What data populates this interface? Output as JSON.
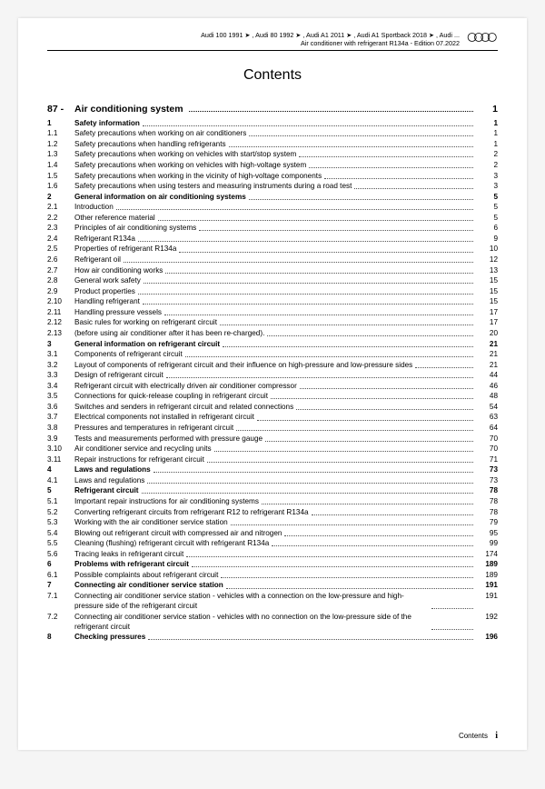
{
  "header": {
    "line1": "Audi 100 1991 ➤ , Audi 80 1992 ➤ , Audi A1 2011 ➤ , Audi A1 Sportback 2018 ➤ , Audi ...",
    "line2": "Air conditioner with refrigerant R134a - Edition 07.2022"
  },
  "title": "Contents",
  "chapter": {
    "num": "87 -",
    "title": "Air conditioning system",
    "page": "1"
  },
  "toc": [
    {
      "num": "1",
      "title": "Safety information",
      "page": "1",
      "bold": true
    },
    {
      "num": "1.1",
      "title": "Safety precautions when working on air conditioners",
      "page": "1"
    },
    {
      "num": "1.2",
      "title": "Safety precautions when handling refrigerants",
      "page": "1"
    },
    {
      "num": "1.3",
      "title": "Safety precautions when working on vehicles with start/stop system",
      "page": "2"
    },
    {
      "num": "1.4",
      "title": "Safety precautions when working on vehicles with high-voltage system",
      "page": "2"
    },
    {
      "num": "1.5",
      "title": "Safety precautions when working in the vicinity of high-voltage components",
      "page": "3"
    },
    {
      "num": "1.6",
      "title": "Safety precautions when using testers and measuring instruments during a road test",
      "page": "3"
    },
    {
      "num": "2",
      "title": "General information on air conditioning systems",
      "page": "5",
      "bold": true
    },
    {
      "num": "2.1",
      "title": "Introduction",
      "page": "5"
    },
    {
      "num": "2.2",
      "title": "Other reference material",
      "page": "5"
    },
    {
      "num": "2.3",
      "title": "Principles of air conditioning systems",
      "page": "6"
    },
    {
      "num": "2.4",
      "title": "Refrigerant R134a",
      "page": "9"
    },
    {
      "num": "2.5",
      "title": "Properties of refrigerant R134a",
      "page": "10"
    },
    {
      "num": "2.6",
      "title": "Refrigerant oil",
      "page": "12"
    },
    {
      "num": "2.7",
      "title": "How air conditioning works",
      "page": "13"
    },
    {
      "num": "2.8",
      "title": "General work safety",
      "page": "15"
    },
    {
      "num": "2.9",
      "title": "Product properties",
      "page": "15"
    },
    {
      "num": "2.10",
      "title": "Handling refrigerant",
      "page": "15"
    },
    {
      "num": "2.11",
      "title": "Handling pressure vessels",
      "page": "17"
    },
    {
      "num": "2.12",
      "title": "Basic rules for working on refrigerant circuit",
      "page": "17"
    },
    {
      "num": "2.13",
      "title": "(before using air conditioner after it has been re-charged).",
      "page": "20"
    },
    {
      "num": "3",
      "title": "General information on refrigerant circuit",
      "page": "21",
      "bold": true
    },
    {
      "num": "3.1",
      "title": "Components of refrigerant circuit",
      "page": "21"
    },
    {
      "num": "3.2",
      "title": "Layout of components of refrigerant circuit and their influence on high-pressure and low-pressure sides",
      "page": "21",
      "multi": true
    },
    {
      "num": "3.3",
      "title": "Design of refrigerant circuit",
      "page": "44"
    },
    {
      "num": "3.4",
      "title": "Refrigerant circuit with electrically driven air conditioner compressor",
      "page": "46"
    },
    {
      "num": "3.5",
      "title": "Connections for quick-release coupling in refrigerant circuit",
      "page": "48"
    },
    {
      "num": "3.6",
      "title": "Switches and senders in refrigerant circuit and related connections",
      "page": "54"
    },
    {
      "num": "3.7",
      "title": "Electrical components not installed in refrigerant circuit",
      "page": "63"
    },
    {
      "num": "3.8",
      "title": "Pressures and temperatures in refrigerant circuit",
      "page": "64"
    },
    {
      "num": "3.9",
      "title": "Tests and measurements performed with pressure gauge",
      "page": "70"
    },
    {
      "num": "3.10",
      "title": "Air conditioner service and recycling units",
      "page": "70"
    },
    {
      "num": "3.11",
      "title": "Repair instructions for refrigerant circuit",
      "page": "71"
    },
    {
      "num": "4",
      "title": "Laws and regulations",
      "page": "73",
      "bold": true
    },
    {
      "num": "4.1",
      "title": "Laws and regulations",
      "page": "73"
    },
    {
      "num": "5",
      "title": "Refrigerant circuit",
      "page": "78",
      "bold": true
    },
    {
      "num": "5.1",
      "title": "Important repair instructions for air conditioning systems",
      "page": "78"
    },
    {
      "num": "5.2",
      "title": "Converting refrigerant circuits from refrigerant R12 to refrigerant R134a",
      "page": "78"
    },
    {
      "num": "5.3",
      "title": "Working with the air conditioner service station",
      "page": "79"
    },
    {
      "num": "5.4",
      "title": "Blowing out refrigerant circuit with compressed air and nitrogen",
      "page": "95"
    },
    {
      "num": "5.5",
      "title": "Cleaning (flushing) refrigerant circuit with refrigerant R134a",
      "page": "99"
    },
    {
      "num": "5.6",
      "title": "Tracing leaks in refrigerant circuit",
      "page": "174"
    },
    {
      "num": "6",
      "title": "Problems with refrigerant circuit",
      "page": "189",
      "bold": true
    },
    {
      "num": "6.1",
      "title": "Possible complaints about refrigerant circuit",
      "page": "189"
    },
    {
      "num": "7",
      "title": "Connecting air conditioner service station",
      "page": "191",
      "bold": true
    },
    {
      "num": "7.1",
      "title": "Connecting air conditioner service station - vehicles with a connection on the low-pressure and high-pressure side of the refrigerant circuit",
      "page": "191",
      "multi": true
    },
    {
      "num": "7.2",
      "title": "Connecting air conditioner service station - vehicles with no connection on the low-pressure side of the refrigerant circuit",
      "page": "192",
      "multi": true
    },
    {
      "num": "8",
      "title": "Checking pressures",
      "page": "196",
      "bold": true
    }
  ],
  "footer": {
    "label": "Contents",
    "page": "i"
  }
}
